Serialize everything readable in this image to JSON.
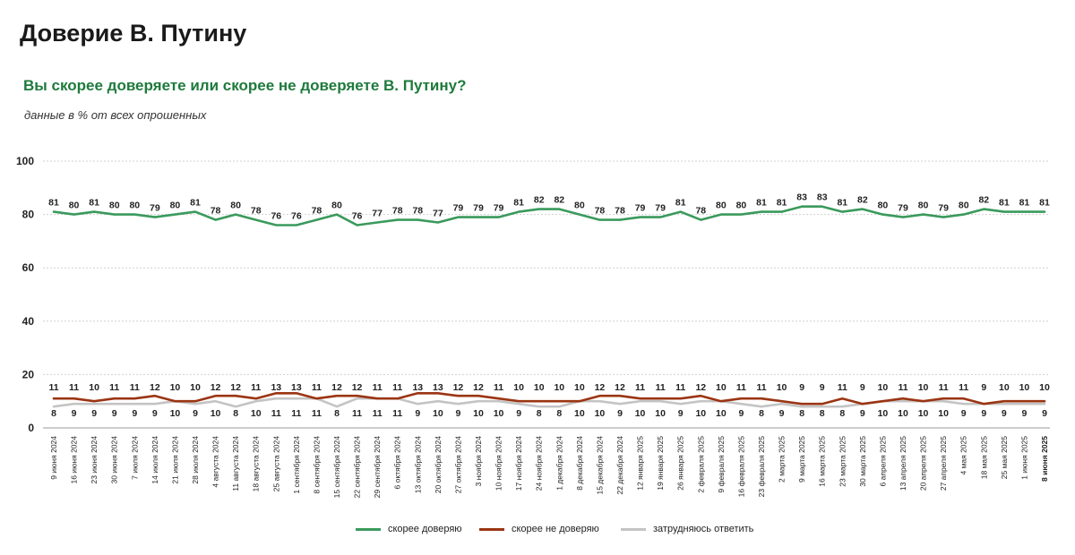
{
  "header": {
    "title": "Доверие В. Путину",
    "subtitle": "Вы скорее доверяете или скорее не доверяете В. Путину?",
    "note": "данные в % от всех опрошенных"
  },
  "colors": {
    "trust": "#3a9a5c",
    "distrust": "#9b3513",
    "undecided": "#c4c4c4",
    "grid": "#d0d0d0",
    "text": "#222222"
  },
  "chart_data": {
    "type": "line",
    "title": "",
    "xlabel": "",
    "ylabel": "",
    "ylim": [
      0,
      100
    ],
    "yticks": [
      0,
      20,
      40,
      60,
      80,
      100
    ],
    "grid": true,
    "legend_position": "bottom",
    "categories": [
      "9 июня 2024",
      "16 июня 2024",
      "23 июня 2024",
      "30 июня 2024",
      "7 июля 2024",
      "14 июля 2024",
      "21 июля 2024",
      "28 июля 2024",
      "4 августа 2024",
      "11 августа 2024",
      "18 августа 2024",
      "25 августа 2024",
      "1 сентября 2024",
      "8 сентября 2024",
      "15 сентября 2024",
      "22 сентября 2024",
      "29 сентября 2024",
      "6 октября 2024",
      "13 октября 2024",
      "20 октября 2024",
      "27 октября 2024",
      "3 ноября 2024",
      "10 ноября 2024",
      "17 ноября 2024",
      "24 ноября 2024",
      "1 декабря 2024",
      "8 декабря 2024",
      "15 декабря 2024",
      "22 декабря 2024",
      "12 января 2025",
      "19 января 2025",
      "26 января 2025",
      "2 февраля 2025",
      "9 февраля 2025",
      "16 февраля 2025",
      "23 февраля 2025",
      "2 марта 2025",
      "9 марта 2025",
      "16 марта 2025",
      "23 марта 2025",
      "30 марта 2025",
      "6 апреля 2025",
      "13 апреля 2025",
      "20 апреля 2025",
      "27 апреля 2025",
      "4 мая 2025",
      "18 мая 2025",
      "25 мая 2025",
      "1 июня 2025",
      "8 июня 2025"
    ],
    "series": [
      {
        "name": "скорее доверяю",
        "values": [
          81,
          80,
          81,
          80,
          80,
          79,
          80,
          81,
          78,
          80,
          78,
          76,
          76,
          78,
          80,
          76,
          77,
          78,
          78,
          77,
          79,
          79,
          79,
          81,
          82,
          82,
          80,
          78,
          78,
          79,
          79,
          81,
          78,
          80,
          80,
          81,
          81,
          83,
          83,
          81,
          82,
          80,
          79,
          80,
          79,
          80,
          82,
          81,
          81,
          81
        ]
      },
      {
        "name": "скорее не доверяю",
        "values": [
          11,
          11,
          10,
          11,
          11,
          12,
          10,
          10,
          12,
          12,
          11,
          13,
          13,
          11,
          12,
          12,
          11,
          11,
          13,
          13,
          12,
          12,
          11,
          10,
          10,
          10,
          10,
          12,
          12,
          11,
          11,
          11,
          12,
          10,
          11,
          11,
          10,
          9,
          9,
          11,
          9,
          10,
          11,
          10,
          11,
          11,
          9,
          10,
          10,
          10
        ]
      },
      {
        "name": "затрудняюсь ответить",
        "values": [
          8,
          9,
          9,
          9,
          9,
          9,
          10,
          9,
          10,
          8,
          10,
          11,
          11,
          11,
          8,
          11,
          11,
          11,
          9,
          10,
          9,
          10,
          10,
          9,
          8,
          8,
          10,
          10,
          9,
          10,
          10,
          9,
          10,
          10,
          9,
          8,
          9,
          8,
          8,
          8,
          9,
          10,
          10,
          10,
          10,
          9,
          9,
          9,
          9,
          9
        ]
      }
    ]
  }
}
